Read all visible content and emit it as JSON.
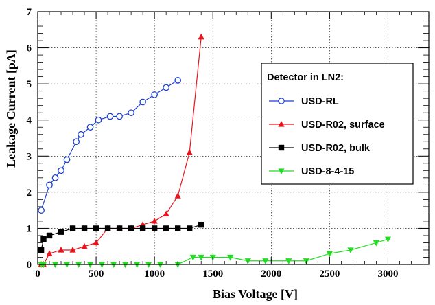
{
  "chart_data": {
    "type": "line",
    "xlabel": "Bias Voltage [V]",
    "ylabel": "Leakage Current [pA]",
    "xlim": [
      0,
      3350
    ],
    "ylim": [
      0,
      7
    ],
    "xticks": [
      0,
      500,
      1000,
      1500,
      2000,
      2500,
      3000
    ],
    "xtick_labels": [
      "0",
      "500",
      "1000",
      "1500",
      "2000",
      "2500",
      "3000"
    ],
    "yticks": [
      0,
      1,
      2,
      3,
      4,
      5,
      6,
      7
    ],
    "ytick_labels": [
      "0",
      "1",
      "2",
      "3",
      "4",
      "5",
      "6",
      "7"
    ],
    "grid": true,
    "legend_title": "Detector in LN2:",
    "legend_position": "right",
    "series": [
      {
        "name": "USD-RL",
        "color": "#1a3fd6",
        "marker": "open-circle",
        "x": [
          30,
          100,
          150,
          200,
          250,
          330,
          370,
          450,
          520,
          620,
          700,
          800,
          900,
          1000,
          1100,
          1200
        ],
        "y": [
          1.5,
          2.2,
          2.4,
          2.6,
          2.9,
          3.4,
          3.6,
          3.8,
          4.0,
          4.1,
          4.1,
          4.2,
          4.5,
          4.7,
          4.9,
          5.1
        ]
      },
      {
        "name": "USD-R02, surface",
        "color": "#e8141c",
        "marker": "triangle-up",
        "x": [
          30,
          50,
          100,
          200,
          300,
          400,
          500,
          600,
          700,
          800,
          900,
          1000,
          1100,
          1200,
          1300,
          1400
        ],
        "y": [
          0.0,
          0.0,
          0.3,
          0.4,
          0.4,
          0.5,
          0.6,
          1.0,
          1.0,
          1.0,
          1.1,
          1.2,
          1.4,
          1.9,
          3.1,
          6.3
        ]
      },
      {
        "name": "USD-R02, bulk",
        "color": "#000000",
        "marker": "filled-square",
        "x": [
          30,
          50,
          100,
          200,
          300,
          400,
          500,
          600,
          700,
          800,
          900,
          1000,
          1100,
          1200,
          1300,
          1400
        ],
        "y": [
          0.4,
          0.7,
          0.8,
          0.9,
          1.0,
          1.0,
          1.0,
          1.0,
          1.0,
          1.0,
          1.0,
          1.0,
          1.0,
          1.0,
          1.0,
          1.1
        ]
      },
      {
        "name": "USD-8-4-15",
        "color": "#22dd22",
        "marker": "triangle-down",
        "x": [
          30,
          50,
          150,
          250,
          350,
          450,
          550,
          650,
          750,
          850,
          950,
          1050,
          1200,
          1330,
          1400,
          1500,
          1650,
          1800,
          1950,
          2150,
          2300,
          2500,
          2680,
          2900,
          3000
        ],
        "y": [
          0.0,
          0.0,
          0.0,
          0.0,
          0.0,
          0.0,
          0.0,
          0.0,
          0.0,
          0.0,
          0.0,
          0.0,
          0.0,
          0.2,
          0.2,
          0.2,
          0.2,
          0.1,
          0.1,
          0.1,
          0.1,
          0.3,
          0.4,
          0.6,
          0.7
        ]
      }
    ]
  }
}
